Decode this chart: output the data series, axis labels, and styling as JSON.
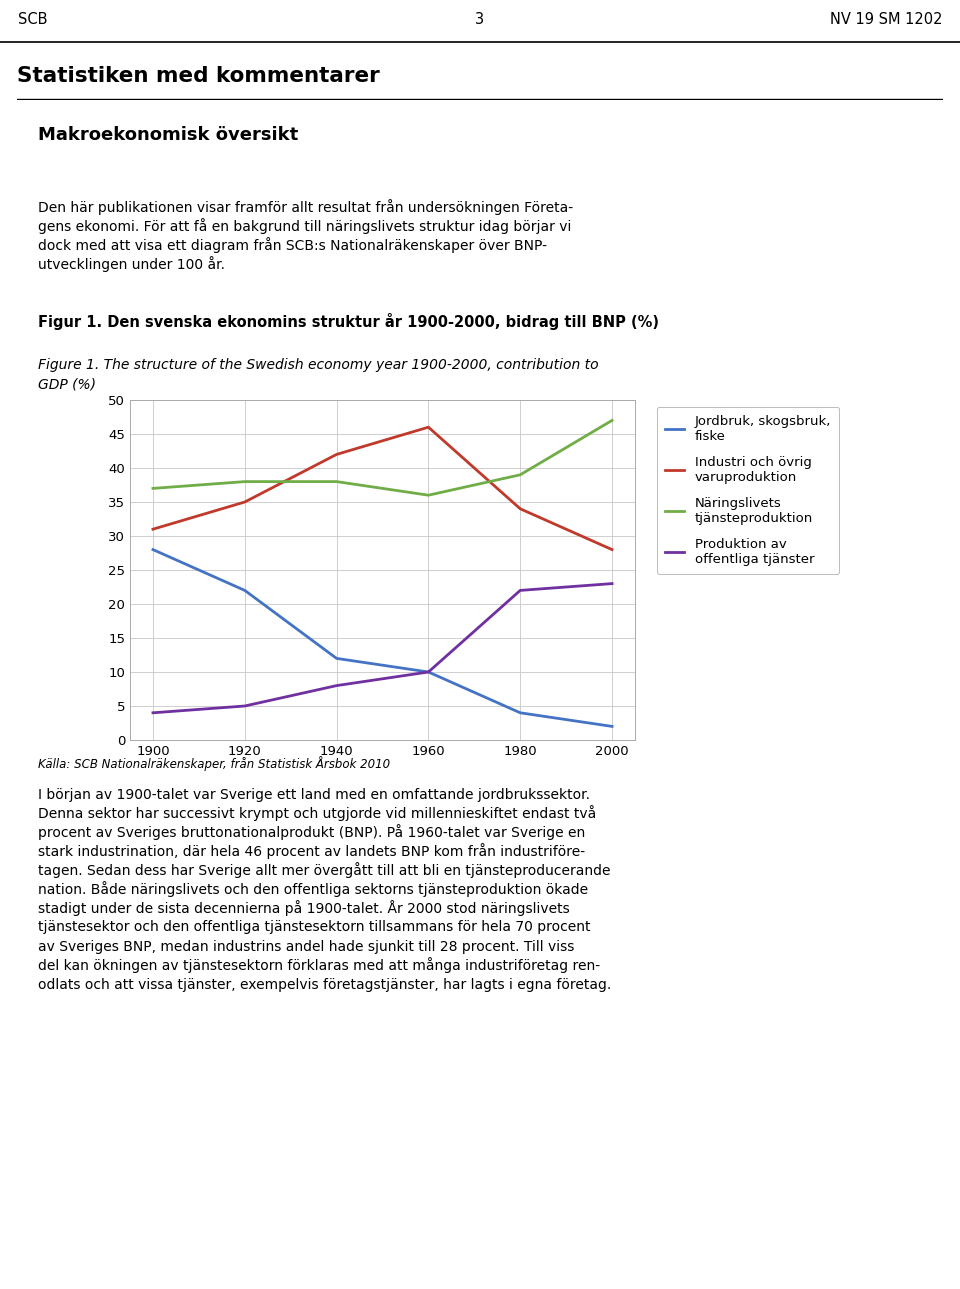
{
  "header_left": "SCB",
  "header_center": "3",
  "header_right": "NV 19 SM 1202",
  "section_title": "Statistiken med kommentarer",
  "subsection_title": "Makroekonomisk översikt",
  "intro_line1": "Den här publikationen visar framför allt resultat från undersökningen Företa-",
  "intro_line2": "gens ekonomi. För att få en bakgrund till näringslivets struktur idag börjar vi",
  "intro_line3": "dock med att visa ett diagram från SCB:s Nationalräkenskaper över BNP-",
  "intro_line4": "utvecklingen under 100 år.",
  "fig_title_sv": "Figur 1. Den svenska ekonomins struktur år 1900-2000, bidrag till BNP (%)",
  "fig_title_en_line1": "Figure 1. The structure of the Swedish economy year 1900-2000, contribution to",
  "fig_title_en_line2": "GDP (%)",
  "caption": "Källa: SCB Nationalräkenskaper, från Statistisk Årsbok 2010",
  "body_lines": [
    "I början av 1900-talet var Sverige ett land med en omfattande jordbrukssektor.",
    "Denna sektor har successivt krympt och utgjorde vid millennieskiftet endast två",
    "procent av Sveriges bruttonationalprodukt (BNP). På 1960-talet var Sverige en",
    "stark industrination, där hela 46 procent av landets BNP kom från industriföre-",
    "tagen. Sedan dess har Sverige allt mer övergått till att bli en tjänsteproducerande",
    "nation. Både näringslivets och den offentliga sektorns tjänsteproduktion ökade",
    "stadigt under de sista decennierna på 1900-talet. År 2000 stod näringslivets",
    "tjänstesektor och den offentliga tjänstesektorn tillsammans för hela 70 procent",
    "av Sveriges BNP, medan industrins andel hade sjunkit till 28 procent. Till viss",
    "del kan ökningen av tjänstesektorn förklaras med att många industriföretag ren-",
    "odlats och att vissa tjänster, exempelvis företagstjänster, har lagts i egna företag."
  ],
  "years": [
    1900,
    1920,
    1940,
    1960,
    1980,
    2000
  ],
  "series": {
    "jordbruk": {
      "label": "Jordbruk, skogsbruk,\nfiske",
      "color": "#4472C4",
      "values": [
        28,
        22,
        12,
        10,
        4,
        2
      ]
    },
    "industri": {
      "label": "Industri och övrig\nvaruproduktion",
      "color": "#C0392B",
      "values": [
        31,
        35,
        42,
        46,
        34,
        28
      ]
    },
    "naringslivets": {
      "label": "Näringslivets\ntjänsteproduktion",
      "color": "#70AD47",
      "values": [
        37,
        38,
        38,
        36,
        39,
        47
      ]
    },
    "produktion": {
      "label": "Produktion av\noffentliga tjänster",
      "color": "#7030A0",
      "values": [
        4,
        5,
        8,
        10,
        22,
        23
      ]
    }
  },
  "ylim": [
    0,
    50
  ],
  "yticks": [
    0,
    5,
    10,
    15,
    20,
    25,
    30,
    35,
    40,
    45,
    50
  ],
  "xticks": [
    1900,
    1920,
    1940,
    1960,
    1980,
    2000
  ],
  "chart_bg": "#ffffff",
  "grid_color": "#c8c8c8"
}
